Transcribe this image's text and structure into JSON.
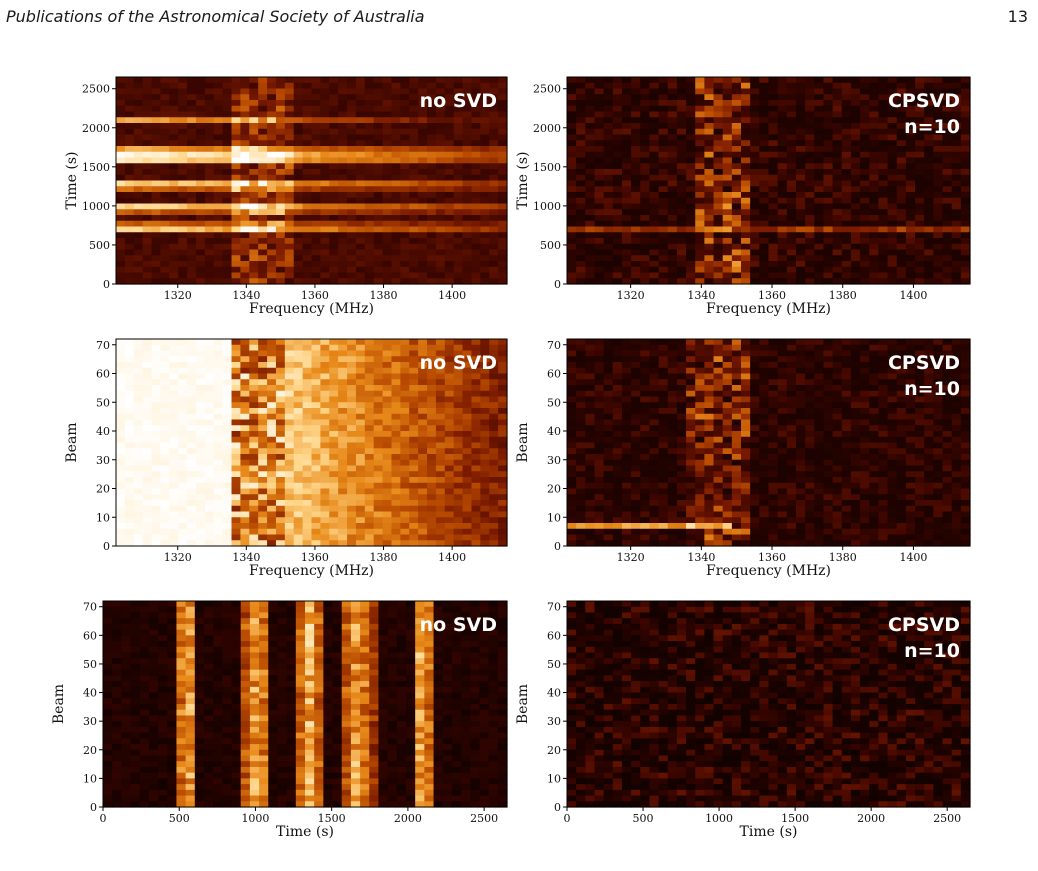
{
  "header": {
    "journal": "Publications of the Astronomical Society of Australia",
    "page_number": "13"
  },
  "chart_data": [
    {
      "type": "heatmap",
      "title": "",
      "xlabel": "Frequency (MHz)",
      "ylabel": "Time (s)",
      "xlim": [
        1302,
        1416
      ],
      "ylim": [
        0,
        2650
      ],
      "xticks": [
        1320,
        1340,
        1360,
        1380,
        1400
      ],
      "yticks": [
        0,
        500,
        1000,
        1500,
        2000,
        2500
      ],
      "annotation": [
        "no SVD"
      ],
      "variant": "nosvd"
    },
    {
      "type": "heatmap",
      "title": "",
      "xlabel": "Frequency (MHz)",
      "ylabel": "Time (s)",
      "xlim": [
        1302,
        1416
      ],
      "ylim": [
        0,
        2650
      ],
      "xticks": [
        1320,
        1340,
        1360,
        1380,
        1400
      ],
      "yticks": [
        0,
        500,
        1000,
        1500,
        2000,
        2500
      ],
      "annotation": [
        "CPSVD",
        "n=10"
      ],
      "variant": "svd"
    },
    {
      "type": "heatmap",
      "title": "",
      "xlabel": "Frequency (MHz)",
      "ylabel": "Beam",
      "xlim": [
        1302,
        1416
      ],
      "ylim": [
        0,
        72
      ],
      "xticks": [
        1320,
        1340,
        1360,
        1380,
        1400
      ],
      "yticks": [
        0,
        10,
        20,
        30,
        40,
        50,
        60,
        70
      ],
      "annotation": [
        "no SVD"
      ],
      "variant": "nosvd"
    },
    {
      "type": "heatmap",
      "title": "",
      "xlabel": "Frequency (MHz)",
      "ylabel": "Beam",
      "xlim": [
        1302,
        1416
      ],
      "ylim": [
        0,
        72
      ],
      "xticks": [
        1320,
        1340,
        1360,
        1380,
        1400
      ],
      "yticks": [
        0,
        10,
        20,
        30,
        40,
        50,
        60,
        70
      ],
      "annotation": [
        "CPSVD",
        "n=10"
      ],
      "variant": "svd"
    },
    {
      "type": "heatmap",
      "title": "",
      "xlabel": "Time (s)",
      "ylabel": "Beam",
      "xlim": [
        0,
        2650
      ],
      "ylim": [
        0,
        72
      ],
      "xticks": [
        0,
        500,
        1000,
        1500,
        2000,
        2500
      ],
      "yticks": [
        0,
        10,
        20,
        30,
        40,
        50,
        60,
        70
      ],
      "annotation": [
        "no SVD"
      ],
      "variant": "nosvd"
    },
    {
      "type": "heatmap",
      "title": "",
      "xlabel": "Time (s)",
      "ylabel": "Beam",
      "xlim": [
        0,
        2650
      ],
      "ylim": [
        0,
        72
      ],
      "xticks": [
        0,
        500,
        1000,
        1500,
        2000,
        2500
      ],
      "yticks": [
        0,
        10,
        20,
        30,
        40,
        50,
        60,
        70
      ],
      "annotation": [
        "CPSVD",
        "n=10"
      ],
      "variant": "svd"
    }
  ],
  "colors": {
    "colormap": [
      "#000000",
      "#3a0500",
      "#7a1a00",
      "#b84a00",
      "#e88a1a",
      "#ffd68a",
      "#ffffff"
    ]
  }
}
